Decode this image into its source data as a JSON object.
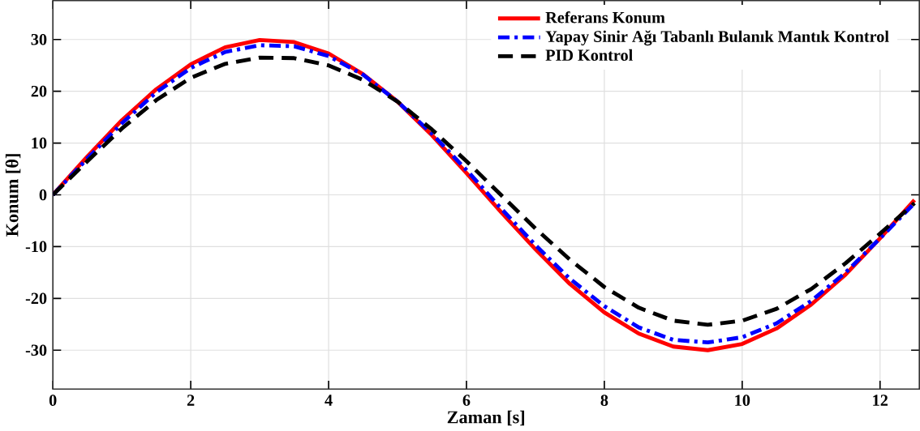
{
  "chart_data": {
    "type": "line",
    "xlabel": "Zaman [s]",
    "ylabel": "Konum [θ]",
    "x": [
      0,
      0.5,
      1,
      1.5,
      2,
      2.5,
      3,
      3.5,
      4,
      4.5,
      5,
      5.5,
      6,
      6.5,
      7,
      7.5,
      8,
      8.5,
      9,
      9.5,
      10,
      10.5,
      11,
      11.5,
      12,
      12.5
    ],
    "series": [
      {
        "name": "Referans Konum",
        "color": "#ff0000",
        "line_style": "solid",
        "values": [
          0,
          7.4,
          14.4,
          20.4,
          25.2,
          28.5,
          29.9,
          29.5,
          27.3,
          23.3,
          18.0,
          11.5,
          4.2,
          -3.3,
          -10.5,
          -17.2,
          -22.7,
          -26.8,
          -29.3,
          -30.0,
          -28.8,
          -25.8,
          -21.2,
          -15.4,
          -8.4,
          -1.0
        ]
      },
      {
        "name": "Yapay Sinir Ağı Tabanlı Bulanık Mantık Kontrol",
        "color": "#0000ff",
        "line_style": "dashdot",
        "values": [
          0,
          7.0,
          13.8,
          19.8,
          24.5,
          27.6,
          28.9,
          28.7,
          26.8,
          23.2,
          18.0,
          11.8,
          4.8,
          -2.6,
          -9.7,
          -16.2,
          -21.5,
          -25.6,
          -28.0,
          -28.5,
          -27.5,
          -24.8,
          -20.5,
          -15.0,
          -8.4,
          -1.6
        ]
      },
      {
        "name": "PID Kontrol",
        "color": "#000000",
        "line_style": "dashed",
        "values": [
          0,
          6.5,
          12.8,
          18.3,
          22.6,
          25.3,
          26.5,
          26.4,
          25.0,
          22.2,
          18.0,
          12.6,
          6.5,
          0,
          -6.5,
          -12.5,
          -17.8,
          -21.8,
          -24.3,
          -25.1,
          -24.3,
          -22.0,
          -18.2,
          -13.2,
          -7.5,
          -1.6
        ]
      }
    ],
    "xlim": [
      0,
      12.57
    ],
    "ylim": [
      -37.5,
      37.5
    ],
    "xticks": [
      0,
      2,
      4,
      6,
      8,
      10,
      12
    ],
    "yticks": [
      -30,
      -20,
      -10,
      0,
      10,
      20,
      30
    ],
    "grid": true,
    "legend": "top right",
    "marker": "none"
  }
}
